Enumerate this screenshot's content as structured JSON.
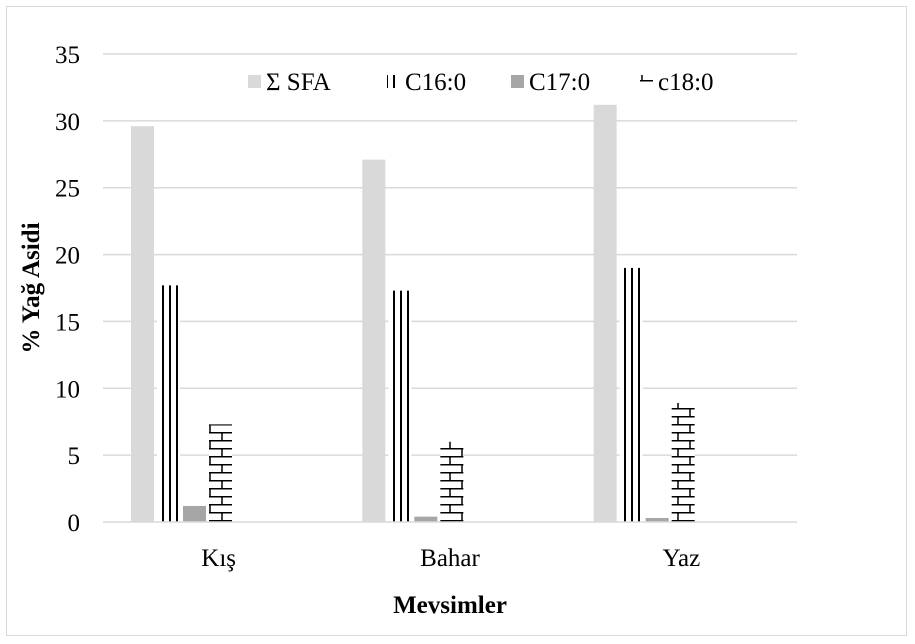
{
  "chart_data": {
    "type": "bar",
    "categories": [
      "Kış",
      "Bahar",
      "Yaz"
    ],
    "series": [
      {
        "name": "Σ SFA",
        "values": [
          29.6,
          27.1,
          31.2
        ],
        "pattern": "solid-light"
      },
      {
        "name": "C16:0",
        "values": [
          17.7,
          17.3,
          19.0
        ],
        "pattern": "vertical-lines"
      },
      {
        "name": "C17:0",
        "values": [
          1.2,
          0.4,
          0.3
        ],
        "pattern": "solid-gray"
      },
      {
        "name": "c18:0",
        "values": [
          7.3,
          6.0,
          8.9
        ],
        "pattern": "brick"
      }
    ],
    "xlabel": "Mevsimler",
    "ylabel": "% Yağ Asidi",
    "ylim": [
      0,
      35
    ],
    "yticks": [
      0,
      5,
      10,
      15,
      20,
      25,
      30,
      35
    ],
    "grid": true,
    "legend_position": "top",
    "colors": {
      "solid_light": "#d9d9d9",
      "solid_gray": "#a6a6a6",
      "line": "#000000",
      "gridline": "#d9d9d9"
    }
  }
}
